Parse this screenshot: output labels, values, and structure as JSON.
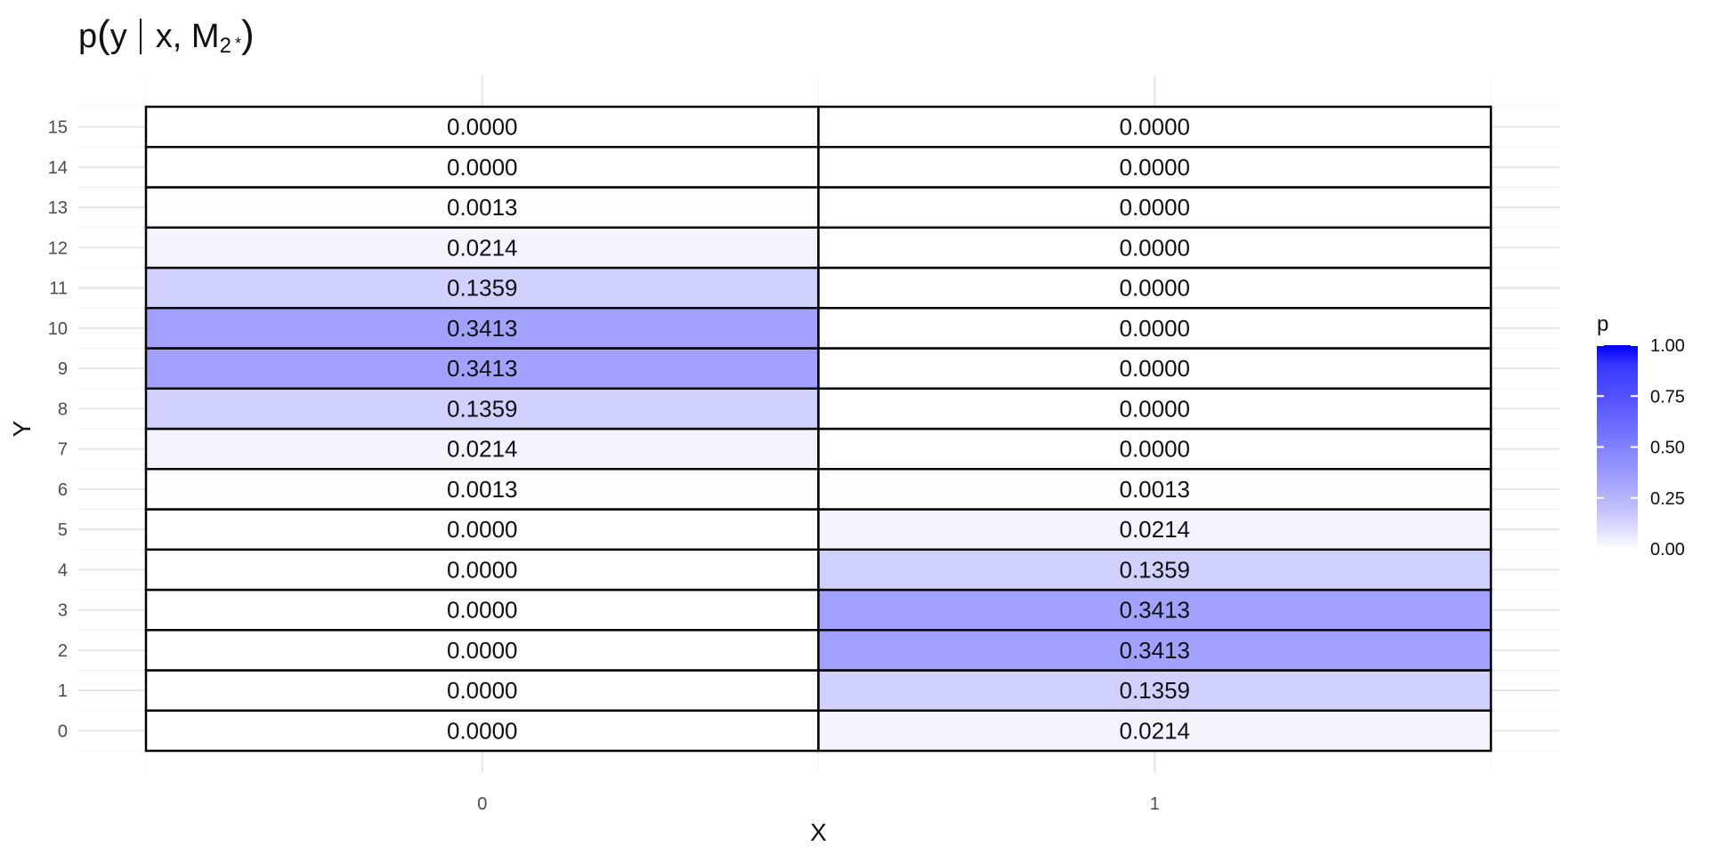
{
  "chart_data": {
    "type": "heatmap",
    "title": {
      "p": "p",
      "y": "y",
      "given": "x, M",
      "sub": "2",
      "star": "*"
    },
    "xlabel": "X",
    "ylabel": "Y",
    "x_categories": [
      "0",
      "1"
    ],
    "y_categories": [
      "0",
      "1",
      "2",
      "3",
      "4",
      "5",
      "6",
      "7",
      "8",
      "9",
      "10",
      "11",
      "12",
      "13",
      "14",
      "15"
    ],
    "cells": {
      "0": [
        "0.0000",
        "0.0000",
        "0.0000",
        "0.0000",
        "0.0000",
        "0.0000",
        "0.0013",
        "0.0214",
        "0.1359",
        "0.3413",
        "0.3413",
        "0.1359",
        "0.0214",
        "0.0013",
        "0.0000",
        "0.0000"
      ],
      "1": [
        "0.0214",
        "0.1359",
        "0.3413",
        "0.3413",
        "0.1359",
        "0.0214",
        "0.0013",
        "0.0000",
        "0.0000",
        "0.0000",
        "0.0000",
        "0.0000",
        "0.0000",
        "0.0000",
        "0.0000",
        "0.0000"
      ]
    },
    "legend": {
      "title": "p",
      "ticks": [
        "0.00",
        "0.25",
        "0.50",
        "0.75",
        "1.00"
      ],
      "tick_values": [
        0,
        0.25,
        0.5,
        0.75,
        1
      ],
      "range": [
        0,
        1
      ],
      "low_color": "#ffffff",
      "high_color": "#0000ff",
      "placement": "right"
    },
    "grid": true
  }
}
